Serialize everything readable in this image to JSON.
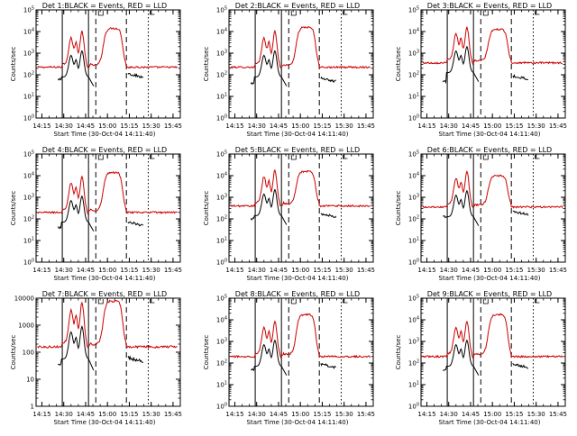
{
  "figure": {
    "background": "#ffffff"
  },
  "chart_data": [
    {
      "type": "line",
      "title": "Det 1:BLACK = Events, RED = LLD",
      "xlabel": "Start Time (30-Oct-04 14:11:40)",
      "ylabel": "Counts/sec",
      "y_scale": "log",
      "y_ticklabels": [
        "10^0",
        "10^1",
        "10^2",
        "10^3",
        "10^4",
        "10^5"
      ],
      "ylim": [
        1,
        100000
      ],
      "x_ticklabels": [
        "14:15",
        "14:30",
        "14:45",
        "15:00",
        "15:15",
        "15:30",
        "15:45"
      ],
      "xlim": [
        "14:11",
        "15:50"
      ],
      "vlines_solid": [
        "14:29",
        "14:47"
      ],
      "vlines_dashed": [
        "14:52",
        "15:13"
      ],
      "vlines_dotted": [
        "15:28"
      ],
      "series": [
        {
          "name": "Events",
          "color": "#000000",
          "values": []
        },
        {
          "name": "LLD",
          "color": "#cc0000",
          "values": []
        }
      ]
    },
    {
      "type": "line",
      "title": "Det 2:BLACK = Events, RED = LLD",
      "xlabel": "Start Time (30-Oct-04 14:11:40)",
      "ylabel": "Counts/sec",
      "y_scale": "log",
      "y_ticklabels": [
        "10^0",
        "10^1",
        "10^2",
        "10^3",
        "10^4",
        "10^5"
      ],
      "ylim": [
        1,
        100000
      ],
      "x_ticklabels": [
        "14:15",
        "14:30",
        "14:45",
        "15:00",
        "15:15",
        "15:30",
        "15:45"
      ],
      "xlim": [
        "14:11",
        "15:50"
      ],
      "vlines_solid": [
        "14:29",
        "14:47"
      ],
      "vlines_dashed": [
        "14:52",
        "15:13"
      ],
      "vlines_dotted": [
        "15:28"
      ],
      "series": [
        {
          "name": "Events",
          "color": "#000000",
          "values": []
        },
        {
          "name": "LLD",
          "color": "#cc0000",
          "values": []
        }
      ]
    },
    {
      "type": "line",
      "title": "Det 3:BLACK = Events, RED = LLD",
      "xlabel": "Start Time (30-Oct-04 14:11:40)",
      "ylabel": "Counts/sec",
      "y_scale": "log",
      "y_ticklabels": [
        "10^0",
        "10^1",
        "10^2",
        "10^3",
        "10^4",
        "10^5"
      ],
      "ylim": [
        1,
        100000
      ],
      "x_ticklabels": [
        "14:15",
        "14:30",
        "14:45",
        "15:00",
        "15:15",
        "15:30",
        "15:45"
      ],
      "xlim": [
        "14:11",
        "15:50"
      ],
      "vlines_solid": [
        "14:29",
        "14:47"
      ],
      "vlines_dashed": [
        "14:52",
        "15:13"
      ],
      "vlines_dotted": [
        "15:28"
      ],
      "series": [
        {
          "name": "Events",
          "color": "#000000",
          "values": []
        },
        {
          "name": "LLD",
          "color": "#cc0000",
          "values": []
        }
      ]
    },
    {
      "type": "line",
      "title": "Det 4:BLACK = Events, RED = LLD",
      "xlabel": "Start Time (30-Oct-04 14:11:40)",
      "ylabel": "Counts/sec",
      "y_scale": "log",
      "y_ticklabels": [
        "10^0",
        "10^1",
        "10^2",
        "10^3",
        "10^4",
        "10^5"
      ],
      "ylim": [
        1,
        100000
      ],
      "x_ticklabels": [
        "14:15",
        "14:30",
        "14:45",
        "15:00",
        "15:15",
        "15:30",
        "15:45"
      ],
      "xlim": [
        "14:11",
        "15:50"
      ],
      "vlines_solid": [
        "14:29",
        "14:47"
      ],
      "vlines_dashed": [
        "14:52",
        "15:13"
      ],
      "vlines_dotted": [
        "15:28"
      ],
      "series": [
        {
          "name": "Events",
          "color": "#000000",
          "values": []
        },
        {
          "name": "LLD",
          "color": "#cc0000",
          "values": []
        }
      ]
    },
    {
      "type": "line",
      "title": "Det 5:BLACK = Events, RED = LLD",
      "xlabel": "Start Time (30-Oct-04 14:11:40)",
      "ylabel": "Counts/sec",
      "y_scale": "log",
      "y_ticklabels": [
        "10^0",
        "10^1",
        "10^2",
        "10^3",
        "10^4",
        "10^5"
      ],
      "ylim": [
        1,
        100000
      ],
      "x_ticklabels": [
        "14:15",
        "14:30",
        "14:45",
        "15:00",
        "15:15",
        "15:30",
        "15:45"
      ],
      "xlim": [
        "14:11",
        "15:50"
      ],
      "vlines_solid": [
        "14:29",
        "14:47"
      ],
      "vlines_dashed": [
        "14:52",
        "15:13"
      ],
      "vlines_dotted": [
        "15:28"
      ],
      "series": [
        {
          "name": "Events",
          "color": "#000000",
          "values": []
        },
        {
          "name": "LLD",
          "color": "#cc0000",
          "values": []
        }
      ]
    },
    {
      "type": "line",
      "title": "Det 6:BLACK = Events, RED = LLD",
      "xlabel": "Start Time (30-Oct-04 14:11:40)",
      "ylabel": "Counts/sec",
      "y_scale": "log",
      "y_ticklabels": [
        "10^0",
        "10^1",
        "10^2",
        "10^3",
        "10^4",
        "10^5"
      ],
      "ylim": [
        1,
        100000
      ],
      "x_ticklabels": [
        "14:15",
        "14:30",
        "14:45",
        "15:00",
        "15:15",
        "15:30",
        "15:45"
      ],
      "xlim": [
        "14:11",
        "15:50"
      ],
      "vlines_solid": [
        "14:29",
        "14:47"
      ],
      "vlines_dashed": [
        "14:52",
        "15:13"
      ],
      "vlines_dotted": [
        "15:28"
      ],
      "series": [
        {
          "name": "Events",
          "color": "#000000",
          "values": []
        },
        {
          "name": "LLD",
          "color": "#cc0000",
          "values": []
        }
      ]
    },
    {
      "type": "line",
      "title": "Det 7:BLACK = Events, RED = LLD",
      "xlabel": "Start Time (30-Oct-04 14:11:40)",
      "ylabel": "Counts/sec",
      "y_scale": "log",
      "y_ticklabels": [
        "1",
        "10",
        "100",
        "1000",
        "10000"
      ],
      "ylim": [
        1,
        10000
      ],
      "x_ticklabels": [
        "14:15",
        "14:30",
        "14:45",
        "15:00",
        "15:15",
        "15:30",
        "15:45"
      ],
      "xlim": [
        "14:11",
        "15:50"
      ],
      "vlines_solid": [
        "14:29",
        "14:47"
      ],
      "vlines_dashed": [
        "14:52",
        "15:13"
      ],
      "vlines_dotted": [
        "15:28"
      ],
      "series": [
        {
          "name": "Events",
          "color": "#000000",
          "values": []
        },
        {
          "name": "LLD",
          "color": "#cc0000",
          "values": []
        }
      ]
    },
    {
      "type": "line",
      "title": "Det 8:BLACK = Events, RED = LLD",
      "xlabel": "Start Time (30-Oct-04 14:11:40)",
      "ylabel": "Counts/sec",
      "y_scale": "log",
      "y_ticklabels": [
        "10^0",
        "10^1",
        "10^2",
        "10^3",
        "10^4",
        "10^5"
      ],
      "ylim": [
        1,
        100000
      ],
      "x_ticklabels": [
        "14:15",
        "14:30",
        "14:45",
        "15:00",
        "15:15",
        "15:30",
        "15:45"
      ],
      "xlim": [
        "14:11",
        "15:50"
      ],
      "vlines_solid": [
        "14:29",
        "14:47"
      ],
      "vlines_dashed": [
        "14:52",
        "15:13"
      ],
      "vlines_dotted": [
        "15:28"
      ],
      "series": [
        {
          "name": "Events",
          "color": "#000000",
          "values": []
        },
        {
          "name": "LLD",
          "color": "#cc0000",
          "values": []
        }
      ]
    },
    {
      "type": "line",
      "title": "Det 9:BLACK = Events, RED = LLD",
      "xlabel": "Start Time (30-Oct-04 14:11:40)",
      "ylabel": "Counts/sec",
      "y_scale": "log",
      "y_ticklabels": [
        "10^0",
        "10^1",
        "10^2",
        "10^3",
        "10^4",
        "10^5"
      ],
      "ylim": [
        1,
        100000
      ],
      "x_ticklabels": [
        "14:15",
        "14:30",
        "14:45",
        "15:00",
        "15:15",
        "15:30",
        "15:45"
      ],
      "xlim": [
        "14:11",
        "15:50"
      ],
      "vlines_solid": [
        "14:29",
        "14:47"
      ],
      "vlines_dashed": [
        "14:52",
        "15:13"
      ],
      "vlines_dotted": [
        "15:28"
      ],
      "series": [
        {
          "name": "Events",
          "color": "#000000",
          "values": []
        },
        {
          "name": "LLD",
          "color": "#cc0000",
          "values": []
        }
      ]
    }
  ]
}
